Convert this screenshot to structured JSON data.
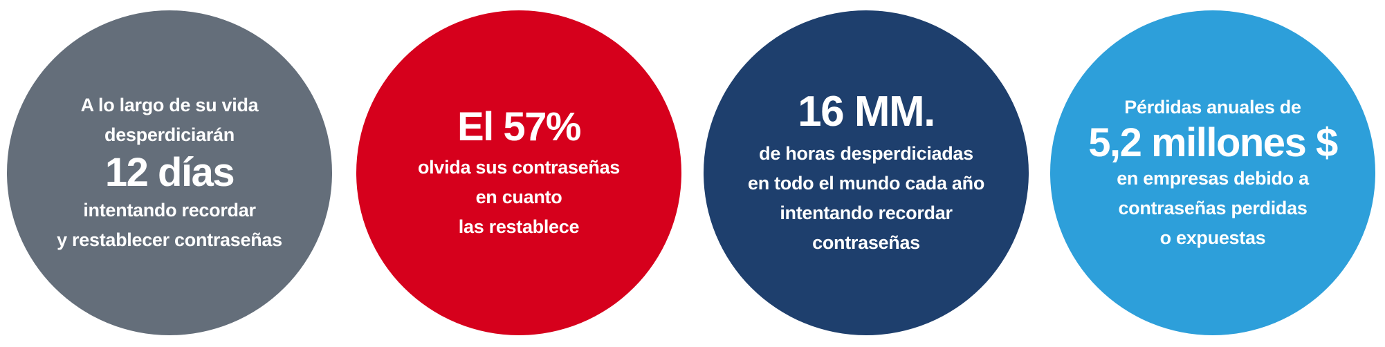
{
  "stats": [
    {
      "color": "#646e7a",
      "lines_before": [
        "A lo largo de su vida",
        "desperdiciarán"
      ],
      "highlight": "12 días",
      "lines_after": [
        "intentando recordar",
        "y restablecer contraseñas"
      ]
    },
    {
      "color": "#d6001c",
      "highlight": "El 57%",
      "lines_after": [
        "olvida sus contraseñas",
        "en cuanto",
        "las restablece"
      ]
    },
    {
      "color": "#1e3f6d",
      "highlight": "16 MM.",
      "lines_after": [
        "de horas desperdiciadas",
        "en todo el mundo cada año",
        "intentando recordar",
        "contraseñas"
      ]
    },
    {
      "color": "#2d9fda",
      "lines_before": [
        "Pérdidas anuales de"
      ],
      "highlight": "5,2 millones $",
      "lines_after": [
        "en empresas debido a",
        "contraseñas perdidas",
        "o expuestas"
      ]
    }
  ]
}
